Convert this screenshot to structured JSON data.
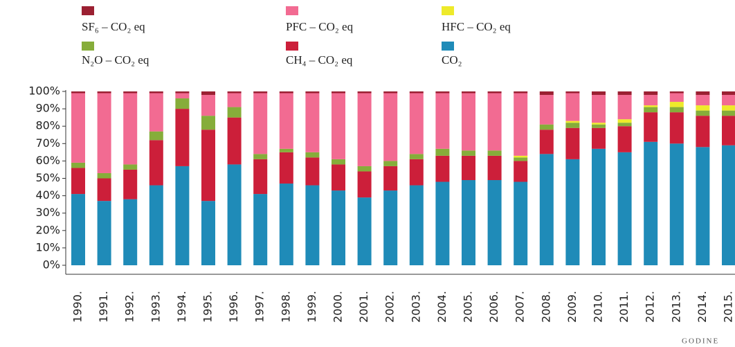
{
  "chart_data": {
    "type": "stacked_bar",
    "x_label": "GODINE",
    "categories": [
      "1990.",
      "1991.",
      "1992.",
      "1993.",
      "1994.",
      "1995.",
      "1996.",
      "1997.",
      "1998.",
      "1999.",
      "2000.",
      "2001.",
      "2002.",
      "2003.",
      "2004.",
      "2005.",
      "2006.",
      "2007.",
      "2008.",
      "2009.",
      "2010.",
      "2011.",
      "2012.",
      "2013.",
      "2014.",
      "2015."
    ],
    "series": [
      {
        "name": "CO₂",
        "color": "#1f8bb8",
        "values": [
          41,
          37,
          38,
          46,
          57,
          37,
          58,
          41,
          47,
          46,
          43,
          39,
          43,
          46,
          48,
          49,
          49,
          48,
          64,
          61,
          67,
          65,
          71,
          70,
          68,
          69
        ]
      },
      {
        "name": "CH₄ – CO₂ eq",
        "color": "#cc1f3a",
        "values": [
          15,
          13,
          17,
          26,
          33,
          41,
          27,
          20,
          18,
          16,
          15,
          15,
          14,
          15,
          15,
          14,
          14,
          12,
          14,
          18,
          12,
          15,
          17,
          18,
          18,
          17
        ]
      },
      {
        "name": "N₂O – CO₂ eq",
        "color": "#86ad3a",
        "values": [
          3,
          3,
          3,
          5,
          6,
          8,
          6,
          3,
          2,
          3,
          3,
          3,
          3,
          3,
          4,
          3,
          3,
          2,
          3,
          3,
          2,
          2,
          3,
          3,
          3,
          3
        ]
      },
      {
        "name": "HFC – CO₂ eq",
        "color": "#eeea2a",
        "values": [
          0,
          0,
          0,
          0,
          0,
          0,
          0,
          0,
          0,
          0,
          0,
          0,
          0,
          0,
          0,
          0,
          0,
          1,
          0,
          1,
          1,
          2,
          1,
          3,
          3,
          3
        ]
      },
      {
        "name": "PFC – CO₂ eq",
        "color": "#f26b92",
        "values": [
          40,
          46,
          41,
          22,
          3,
          12,
          8,
          35,
          32,
          34,
          38,
          42,
          39,
          35,
          32,
          33,
          33,
          36,
          17,
          16,
          16,
          14,
          6,
          5,
          6,
          6
        ]
      },
      {
        "name": "SF₆ – CO₂ eq",
        "color": "#9b2032",
        "values": [
          1,
          1,
          1,
          1,
          1,
          2,
          1,
          1,
          1,
          1,
          1,
          1,
          1,
          1,
          1,
          1,
          1,
          1,
          2,
          1,
          2,
          2,
          2,
          1,
          2,
          2
        ]
      }
    ],
    "ylim": [
      0,
      100
    ],
    "yticks": [
      {
        "value": 0,
        "label": "0%"
      },
      {
        "value": 10,
        "label": "10%"
      },
      {
        "value": 20,
        "label": "20%"
      },
      {
        "value": 30,
        "label": "30%"
      },
      {
        "value": 40,
        "label": "40%"
      },
      {
        "value": 50,
        "label": "50%"
      },
      {
        "value": 60,
        "label": "60%"
      },
      {
        "value": 70,
        "label": "70%"
      },
      {
        "value": 80,
        "label": "80%"
      },
      {
        "value": 90,
        "label": "90%"
      },
      {
        "value": 100,
        "label": "100%"
      }
    ],
    "legend_order": [
      5,
      4,
      3,
      2,
      1,
      0
    ]
  }
}
